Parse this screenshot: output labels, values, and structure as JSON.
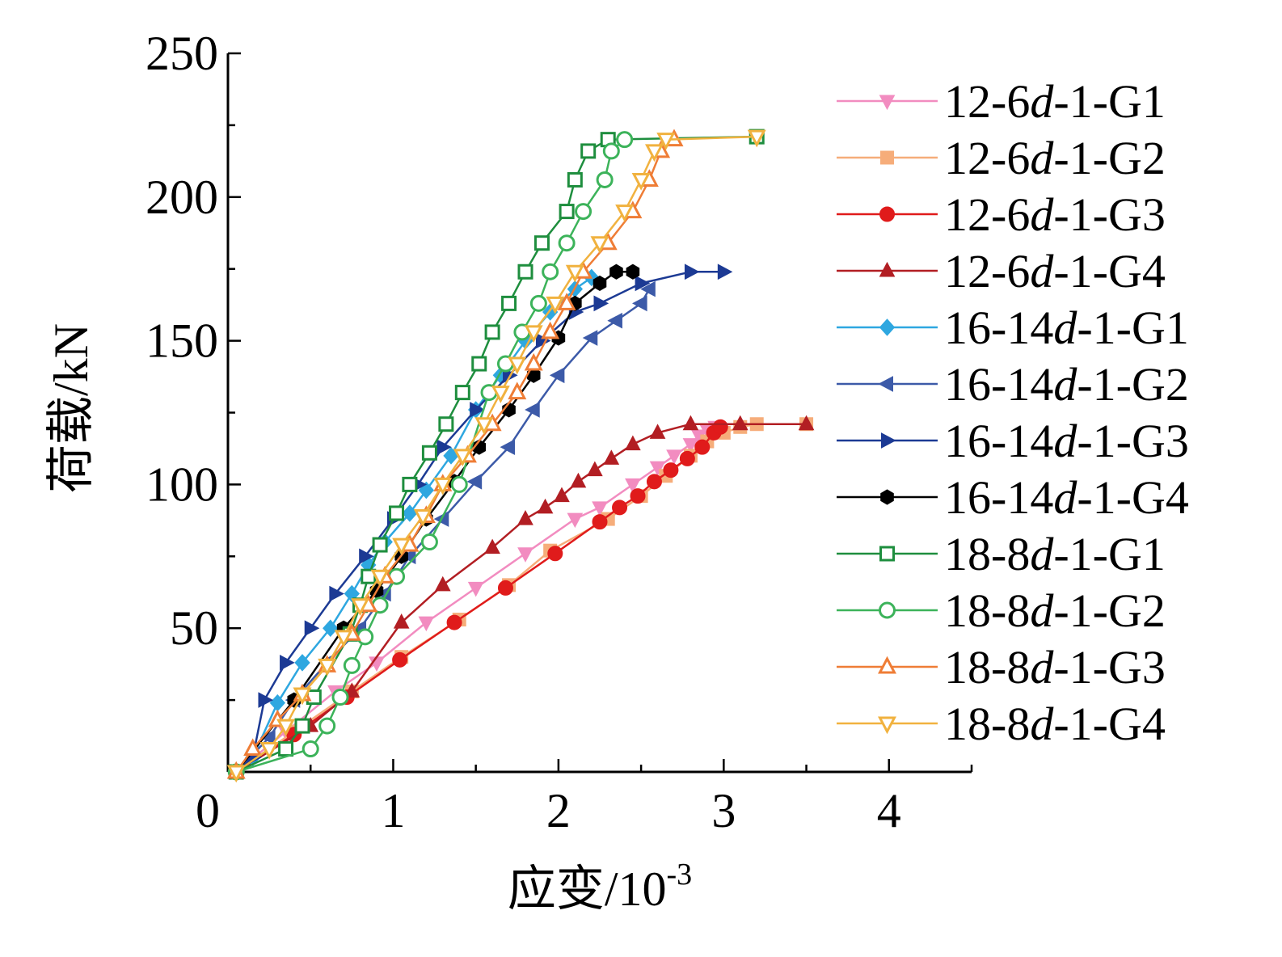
{
  "chart_data": {
    "type": "line",
    "xlabel": "应变/10",
    "xlabel_sup": "-3",
    "ylabel": "荷载/kN",
    "xlim": [
      0,
      4.5
    ],
    "ylim": [
      0,
      250
    ],
    "x_ticks": [
      "0",
      "1",
      "2",
      "3",
      "4"
    ],
    "y_ticks": [
      "50",
      "100",
      "150",
      "200",
      "250"
    ],
    "grid": false,
    "legend_position": "right",
    "series": [
      {
        "name": "12-6d-1-G1",
        "prefix": "12-6",
        "suffix": "-1-G1",
        "color": "#f28cc0",
        "marker": "triangle-down",
        "filled": true,
        "points": [
          [
            0.05,
            0
          ],
          [
            0.35,
            14
          ],
          [
            0.65,
            28
          ],
          [
            0.9,
            38
          ],
          [
            1.2,
            52
          ],
          [
            1.5,
            64
          ],
          [
            1.8,
            76
          ],
          [
            2.1,
            88
          ],
          [
            2.25,
            92
          ],
          [
            2.45,
            100
          ],
          [
            2.6,
            106
          ],
          [
            2.7,
            110
          ],
          [
            2.8,
            114
          ],
          [
            2.85,
            117
          ],
          [
            2.9,
            119
          ],
          [
            2.95,
            120
          ]
        ]
      },
      {
        "name": "12-6d-1-G2",
        "prefix": "12-6",
        "suffix": "-1-G2",
        "color": "#f6ad7a",
        "marker": "square",
        "filled": true,
        "points": [
          [
            0.05,
            0
          ],
          [
            0.4,
            14
          ],
          [
            0.75,
            28
          ],
          [
            1.05,
            40
          ],
          [
            1.4,
            53
          ],
          [
            1.7,
            65
          ],
          [
            1.95,
            77
          ],
          [
            2.3,
            88
          ],
          [
            2.5,
            96
          ],
          [
            2.65,
            103
          ],
          [
            2.8,
            110
          ],
          [
            2.9,
            115
          ],
          [
            3.0,
            118
          ],
          [
            3.1,
            120
          ],
          [
            3.2,
            121
          ],
          [
            3.5,
            121
          ]
        ]
      },
      {
        "name": "12-6d-1-G3",
        "prefix": "12-6",
        "suffix": "-1-G3",
        "color": "#e01b1b",
        "marker": "circle",
        "filled": true,
        "points": [
          [
            0.05,
            0
          ],
          [
            0.4,
            13
          ],
          [
            0.72,
            26
          ],
          [
            1.04,
            39
          ],
          [
            1.37,
            52
          ],
          [
            1.68,
            64
          ],
          [
            1.98,
            76
          ],
          [
            2.25,
            87
          ],
          [
            2.37,
            92
          ],
          [
            2.48,
            96
          ],
          [
            2.58,
            101
          ],
          [
            2.68,
            105
          ],
          [
            2.78,
            109
          ],
          [
            2.87,
            113
          ],
          [
            2.94,
            118
          ],
          [
            2.98,
            120
          ]
        ]
      },
      {
        "name": "12-6d-1-G4",
        "prefix": "12-6",
        "suffix": "-1-G4",
        "color": "#b21e23",
        "marker": "triangle-up",
        "filled": true,
        "points": [
          [
            0.05,
            0
          ],
          [
            0.5,
            16
          ],
          [
            0.75,
            28
          ],
          [
            1.05,
            52
          ],
          [
            1.3,
            65
          ],
          [
            1.6,
            78
          ],
          [
            1.8,
            88
          ],
          [
            1.92,
            92
          ],
          [
            2.02,
            96
          ],
          [
            2.12,
            101
          ],
          [
            2.22,
            105
          ],
          [
            2.32,
            109
          ],
          [
            2.45,
            114
          ],
          [
            2.6,
            118
          ],
          [
            2.8,
            121
          ],
          [
            3.1,
            121
          ],
          [
            3.5,
            121
          ]
        ]
      },
      {
        "name": "16-14d-1-G1",
        "prefix": "16-14",
        "suffix": "-1-G1",
        "color": "#2ea7e0",
        "marker": "diamond",
        "filled": true,
        "points": [
          [
            0.05,
            0
          ],
          [
            0.15,
            5
          ],
          [
            0.3,
            24
          ],
          [
            0.45,
            38
          ],
          [
            0.62,
            50
          ],
          [
            0.75,
            62
          ],
          [
            0.85,
            72
          ],
          [
            0.95,
            80
          ],
          [
            1.1,
            90
          ],
          [
            1.2,
            98
          ],
          [
            1.35,
            110
          ],
          [
            1.5,
            126
          ],
          [
            1.65,
            138
          ],
          [
            1.8,
            150
          ],
          [
            1.95,
            160
          ],
          [
            2.1,
            168
          ],
          [
            2.2,
            172
          ]
        ]
      },
      {
        "name": "16-14d-1-G2",
        "prefix": "16-14",
        "suffix": "-1-G2",
        "color": "#3c5aa8",
        "marker": "triangle-left",
        "filled": true,
        "points": [
          [
            0.05,
            0
          ],
          [
            0.25,
            12
          ],
          [
            0.4,
            25
          ],
          [
            0.6,
            38
          ],
          [
            0.8,
            50
          ],
          [
            0.95,
            62
          ],
          [
            1.1,
            75
          ],
          [
            1.3,
            88
          ],
          [
            1.5,
            101
          ],
          [
            1.7,
            113
          ],
          [
            1.85,
            126
          ],
          [
            2.0,
            138
          ],
          [
            2.2,
            151
          ],
          [
            2.35,
            157
          ],
          [
            2.5,
            163
          ],
          [
            2.55,
            168
          ]
        ]
      },
      {
        "name": "16-14d-1-G3",
        "prefix": "16-14",
        "suffix": "-1-G3",
        "color": "#1c3a94",
        "marker": "triangle-right",
        "filled": true,
        "points": [
          [
            0.05,
            0
          ],
          [
            0.15,
            5
          ],
          [
            0.22,
            25
          ],
          [
            0.35,
            38
          ],
          [
            0.5,
            50
          ],
          [
            0.65,
            62
          ],
          [
            0.83,
            75
          ],
          [
            1.0,
            88
          ],
          [
            1.15,
            100
          ],
          [
            1.3,
            113
          ],
          [
            1.5,
            126
          ],
          [
            1.7,
            138
          ],
          [
            1.9,
            150
          ],
          [
            2.1,
            160
          ],
          [
            2.25,
            163
          ],
          [
            2.5,
            170
          ],
          [
            2.8,
            174
          ],
          [
            3.0,
            174
          ]
        ]
      },
      {
        "name": "16-14d-1-G4",
        "prefix": "16-14",
        "suffix": "-1-G4",
        "color": "#000000",
        "marker": "hexagon",
        "filled": true,
        "points": [
          [
            0.05,
            0
          ],
          [
            0.4,
            25
          ],
          [
            0.7,
            50
          ],
          [
            0.9,
            63
          ],
          [
            1.05,
            75
          ],
          [
            1.2,
            88
          ],
          [
            1.37,
            101
          ],
          [
            1.52,
            113
          ],
          [
            1.7,
            126
          ],
          [
            1.85,
            138
          ],
          [
            2.0,
            151
          ],
          [
            2.1,
            163
          ],
          [
            2.25,
            170
          ],
          [
            2.35,
            174
          ],
          [
            2.45,
            174
          ]
        ]
      },
      {
        "name": "18-8d-1-G1",
        "prefix": "18-8",
        "suffix": "-1-G1",
        "color": "#1e8e3e",
        "marker": "square",
        "filled": false,
        "points": [
          [
            0.05,
            0
          ],
          [
            0.35,
            8
          ],
          [
            0.45,
            16
          ],
          [
            0.52,
            26
          ],
          [
            0.74,
            48
          ],
          [
            0.8,
            58
          ],
          [
            0.85,
            68
          ],
          [
            0.92,
            79
          ],
          [
            1.02,
            90
          ],
          [
            1.1,
            100
          ],
          [
            1.22,
            111
          ],
          [
            1.32,
            121
          ],
          [
            1.42,
            132
          ],
          [
            1.52,
            142
          ],
          [
            1.6,
            153
          ],
          [
            1.7,
            163
          ],
          [
            1.8,
            174
          ],
          [
            1.9,
            184
          ],
          [
            2.05,
            195
          ],
          [
            2.1,
            206
          ],
          [
            2.18,
            216
          ],
          [
            2.3,
            220
          ],
          [
            3.2,
            221
          ]
        ]
      },
      {
        "name": "18-8d-1-G2",
        "prefix": "18-8",
        "suffix": "-1-G2",
        "color": "#3cb35a",
        "marker": "circle",
        "filled": false,
        "points": [
          [
            0.05,
            0
          ],
          [
            0.5,
            8
          ],
          [
            0.6,
            16
          ],
          [
            0.68,
            26
          ],
          [
            0.75,
            37
          ],
          [
            0.83,
            47
          ],
          [
            0.92,
            58
          ],
          [
            1.02,
            68
          ],
          [
            1.22,
            80
          ],
          [
            1.4,
            100
          ],
          [
            1.58,
            132
          ],
          [
            1.68,
            142
          ],
          [
            1.78,
            153
          ],
          [
            1.88,
            163
          ],
          [
            1.95,
            174
          ],
          [
            2.05,
            184
          ],
          [
            2.15,
            195
          ],
          [
            2.28,
            206
          ],
          [
            2.32,
            216
          ],
          [
            2.4,
            220
          ]
        ]
      },
      {
        "name": "18-8d-1-G3",
        "prefix": "18-8",
        "suffix": "-1-G3",
        "color": "#ef7d36",
        "marker": "triangle-up",
        "filled": false,
        "points": [
          [
            0.05,
            0
          ],
          [
            0.15,
            8
          ],
          [
            0.3,
            18
          ],
          [
            0.45,
            27
          ],
          [
            0.6,
            37
          ],
          [
            0.75,
            48
          ],
          [
            0.85,
            58
          ],
          [
            0.95,
            68
          ],
          [
            1.1,
            79
          ],
          [
            1.2,
            89
          ],
          [
            1.3,
            100
          ],
          [
            1.45,
            110
          ],
          [
            1.6,
            121
          ],
          [
            1.75,
            132
          ],
          [
            1.85,
            142
          ],
          [
            1.95,
            153
          ],
          [
            2.05,
            163
          ],
          [
            2.15,
            174
          ],
          [
            2.3,
            184
          ],
          [
            2.45,
            195
          ],
          [
            2.55,
            206
          ],
          [
            2.62,
            216
          ],
          [
            2.7,
            220
          ]
        ]
      },
      {
        "name": "18-8d-1-G4",
        "prefix": "18-8",
        "suffix": "-1-G4",
        "color": "#f1b23f",
        "marker": "triangle-down",
        "filled": false,
        "points": [
          [
            0.05,
            0
          ],
          [
            0.25,
            8
          ],
          [
            0.35,
            16
          ],
          [
            0.45,
            27
          ],
          [
            0.6,
            37
          ],
          [
            0.7,
            47
          ],
          [
            0.8,
            58
          ],
          [
            0.92,
            68
          ],
          [
            1.05,
            79
          ],
          [
            1.18,
            89
          ],
          [
            1.3,
            100
          ],
          [
            1.42,
            110
          ],
          [
            1.55,
            121
          ],
          [
            1.65,
            132
          ],
          [
            1.75,
            142
          ],
          [
            1.85,
            153
          ],
          [
            1.98,
            163
          ],
          [
            2.1,
            174
          ],
          [
            2.25,
            184
          ],
          [
            2.4,
            195
          ],
          [
            2.5,
            206
          ],
          [
            2.58,
            216
          ],
          [
            2.65,
            220
          ],
          [
            3.2,
            221
          ]
        ]
      }
    ]
  }
}
